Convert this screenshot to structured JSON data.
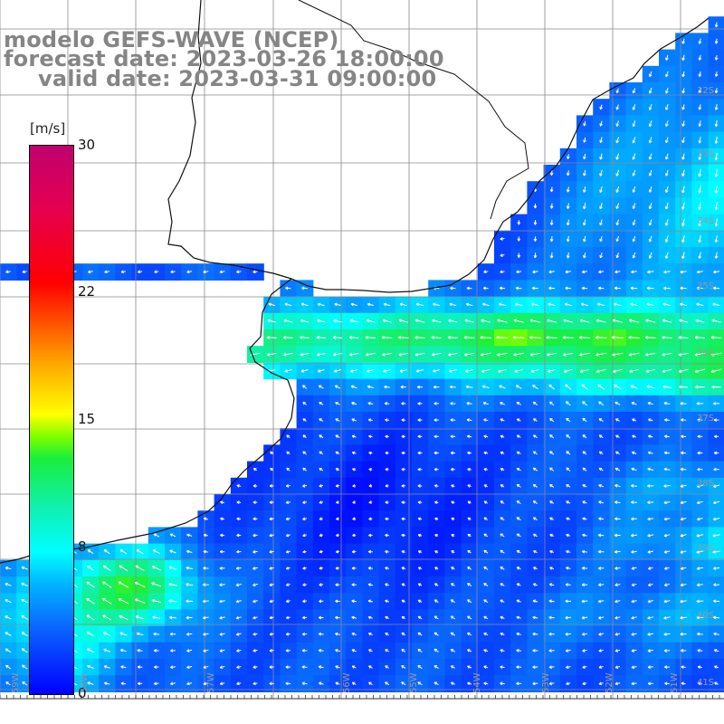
{
  "title": {
    "line1": "modelo GEFS-WAVE (NCEP)",
    "line2": "forecast date: 2023-03-26 18:00:00",
    "line3": "valid date: 2023-03-31 09:00:00"
  },
  "colorbar": {
    "unit": "[m/s]",
    "ticks": [
      {
        "label": "30",
        "value": 30
      },
      {
        "label": "22",
        "value": 22
      },
      {
        "label": "15",
        "value": 15
      },
      {
        "label": "8",
        "value": 8
      },
      {
        "label": "0",
        "value": 0
      }
    ],
    "min": 0,
    "max": 30
  },
  "map": {
    "lat_labels": [
      "32S",
      "33S",
      "34S",
      "35S",
      "36S",
      "37S",
      "38S",
      "39S",
      "40S",
      "41S"
    ],
    "lon_labels": [
      "59W",
      "58W",
      "57W",
      "56W",
      "55W",
      "54W",
      "53W",
      "52W",
      "51W"
    ],
    "colors": {
      "land": "#ffffff",
      "grid": "#8a8a8a",
      "coast": "#111111",
      "arrow": "#ffffff"
    }
  }
}
